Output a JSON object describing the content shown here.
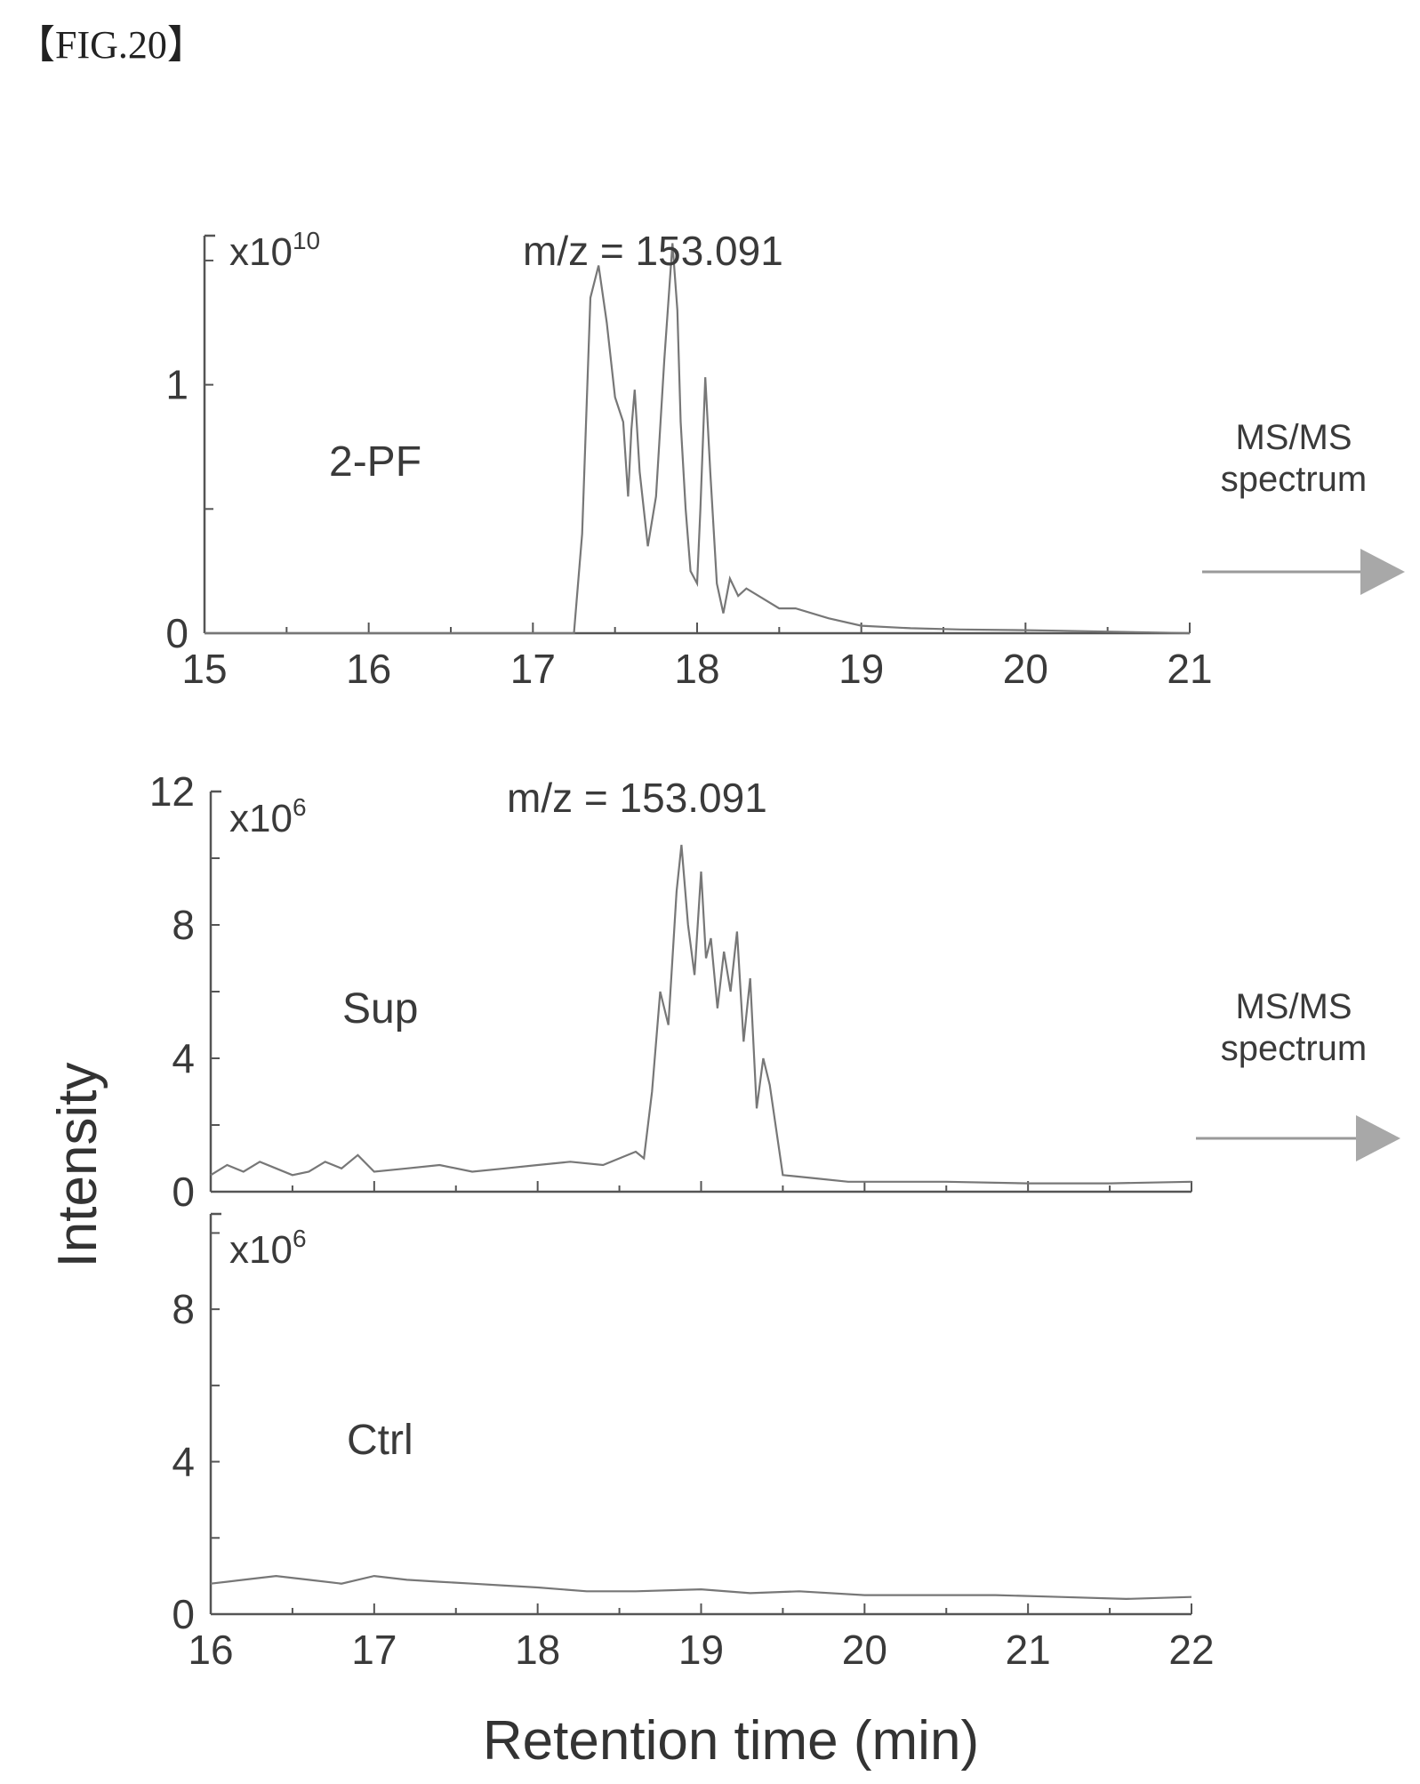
{
  "figure_label": "【FIG.20】",
  "arrow_text": {
    "line1": "MS/MS",
    "line2": "spectrum"
  },
  "y_axis_label": "Intensity",
  "x_axis_label": "Retention time (min)",
  "colors": {
    "trace": "#777777",
    "axis": "#555555",
    "arrow": "#9a9a9a",
    "text": "#3a3a3a"
  },
  "chart_data": [
    {
      "type": "line",
      "panel": "2-PF",
      "sample_label": "2-PF",
      "title": "m/z = 153.091",
      "scale_label": "x10",
      "scale_exponent": "10",
      "xlabel": "",
      "ylabel": "Intensity",
      "xlim": [
        15,
        21
      ],
      "ylim": [
        0,
        1.6
      ],
      "xticks": [
        "15",
        "16",
        "17",
        "18",
        "19",
        "20",
        "21"
      ],
      "yticks": [
        {
          "value": 0,
          "label": "0"
        },
        {
          "value": 1,
          "label": "1"
        }
      ],
      "x": [
        15.0,
        16.0,
        17.0,
        17.25,
        17.3,
        17.35,
        17.4,
        17.45,
        17.5,
        17.55,
        17.58,
        17.6,
        17.62,
        17.65,
        17.7,
        17.75,
        17.8,
        17.85,
        17.88,
        17.9,
        17.93,
        17.96,
        18.0,
        18.02,
        18.05,
        18.08,
        18.12,
        18.16,
        18.2,
        18.25,
        18.3,
        18.4,
        18.5,
        18.6,
        18.8,
        19.0,
        19.3,
        19.6,
        20.0,
        20.2,
        21.0
      ],
      "y": [
        0.0,
        0.0,
        0.0,
        0.0,
        0.4,
        1.35,
        1.48,
        1.25,
        0.95,
        0.85,
        0.55,
        0.82,
        0.98,
        0.65,
        0.35,
        0.55,
        1.1,
        1.57,
        1.3,
        0.85,
        0.5,
        0.25,
        0.2,
        0.5,
        1.03,
        0.65,
        0.2,
        0.08,
        0.22,
        0.15,
        0.18,
        0.14,
        0.1,
        0.1,
        0.06,
        0.03,
        0.02,
        0.015,
        0.012,
        0.01,
        0.0
      ]
    },
    {
      "type": "line",
      "panel": "Sup",
      "sample_label": "Sup",
      "title": "m/z = 153.091",
      "scale_label": "x10",
      "scale_exponent": "6",
      "xlabel": "",
      "ylabel": "Intensity",
      "xlim": [
        16,
        22
      ],
      "ylim": [
        0,
        12
      ],
      "yticks": [
        {
          "value": 0,
          "label": "0"
        },
        {
          "value": 4,
          "label": "4"
        },
        {
          "value": 8,
          "label": "8"
        },
        {
          "value": 12,
          "label": "12"
        }
      ],
      "x": [
        16.0,
        16.1,
        16.2,
        16.3,
        16.4,
        16.5,
        16.6,
        16.7,
        16.8,
        16.9,
        17.0,
        17.2,
        17.4,
        17.6,
        17.8,
        18.0,
        18.2,
        18.4,
        18.5,
        18.6,
        18.65,
        18.7,
        18.75,
        18.8,
        18.85,
        18.88,
        18.92,
        18.96,
        19.0,
        19.03,
        19.06,
        19.1,
        19.14,
        19.18,
        19.22,
        19.26,
        19.3,
        19.34,
        19.38,
        19.42,
        19.5,
        19.7,
        19.9,
        20.0,
        20.5,
        21.0,
        21.5,
        22.0
      ],
      "y": [
        0.5,
        0.8,
        0.6,
        0.9,
        0.7,
        0.5,
        0.6,
        0.9,
        0.7,
        1.1,
        0.6,
        0.7,
        0.8,
        0.6,
        0.7,
        0.8,
        0.9,
        0.8,
        1.0,
        1.2,
        1.0,
        3.0,
        6.0,
        5.0,
        9.0,
        10.4,
        8.0,
        6.5,
        9.6,
        7.0,
        7.6,
        5.5,
        7.2,
        6.0,
        7.8,
        4.5,
        6.4,
        2.5,
        4.0,
        3.2,
        0.5,
        0.4,
        0.3,
        0.3,
        0.3,
        0.25,
        0.25,
        0.3
      ]
    },
    {
      "type": "line",
      "panel": "Ctrl",
      "sample_label": "Ctrl",
      "title": "",
      "scale_label": "x10",
      "scale_exponent": "6",
      "xlabel": "Retention time (min)",
      "ylabel": "Intensity",
      "xlim": [
        16,
        22
      ],
      "ylim": [
        0,
        12
      ],
      "xticks": [
        "16",
        "17",
        "18",
        "19",
        "20",
        "21",
        "22"
      ],
      "yticks": [
        {
          "value": 0,
          "label": "0"
        },
        {
          "value": 4,
          "label": "4"
        },
        {
          "value": 8,
          "label": "8"
        }
      ],
      "x": [
        16.0,
        16.2,
        16.4,
        16.6,
        16.8,
        17.0,
        17.2,
        17.4,
        17.6,
        17.8,
        18.0,
        18.3,
        18.6,
        19.0,
        19.3,
        19.6,
        20.0,
        20.4,
        20.8,
        21.2,
        21.6,
        22.0
      ],
      "y": [
        0.8,
        0.9,
        1.0,
        0.9,
        0.8,
        1.0,
        0.9,
        0.85,
        0.8,
        0.75,
        0.7,
        0.6,
        0.6,
        0.65,
        0.55,
        0.6,
        0.5,
        0.5,
        0.5,
        0.45,
        0.4,
        0.45
      ]
    }
  ]
}
